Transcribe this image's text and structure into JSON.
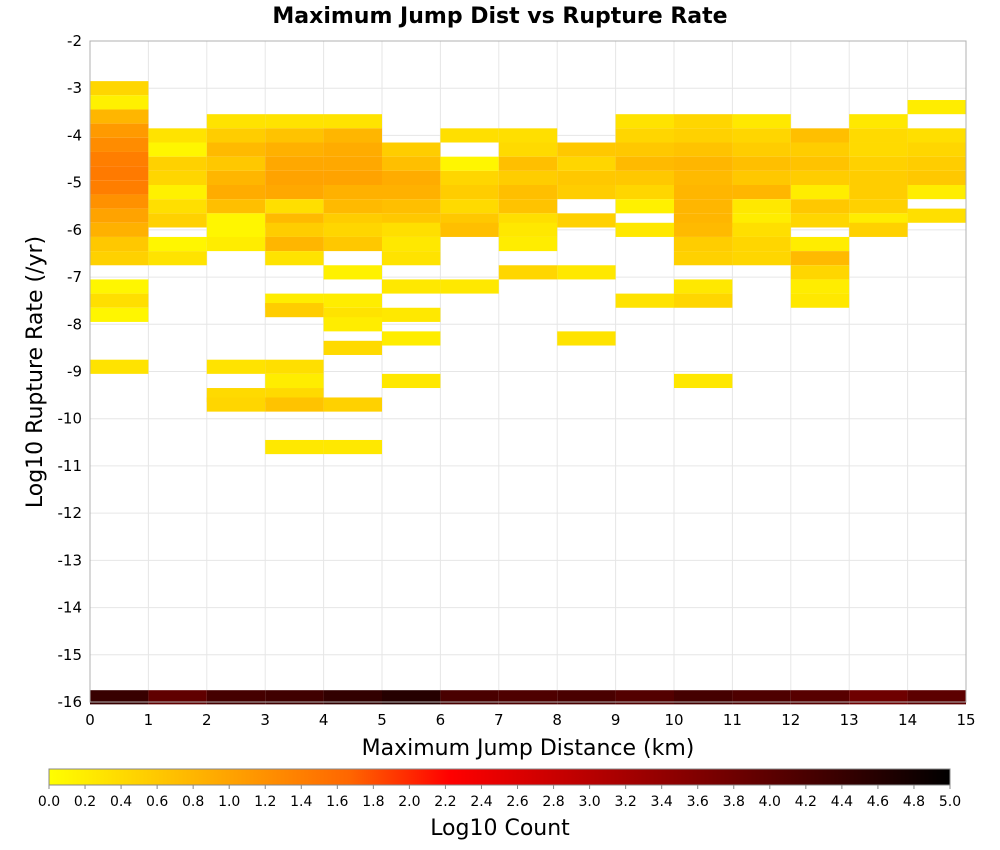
{
  "chart_data": {
    "type": "heatmap",
    "title": "Maximum Jump Dist vs Rupture Rate",
    "xlabel": "Maximum Jump Distance (km)",
    "ylabel": "Log10 Rupture Rate (/yr)",
    "xlim": [
      0,
      15
    ],
    "ylim": [
      -16,
      -2
    ],
    "x_ticks": [
      "0",
      "1",
      "2",
      "3",
      "4",
      "5",
      "6",
      "7",
      "8",
      "9",
      "10",
      "11",
      "12",
      "13",
      "14",
      "15"
    ],
    "y_ticks": [
      "-2",
      "-3",
      "-4",
      "-5",
      "-6",
      "-7",
      "-8",
      "-9",
      "-10",
      "-11",
      "-12",
      "-13",
      "-14",
      "-15",
      "-16"
    ],
    "bin_width_x": 1,
    "bin_height_y": 0.3,
    "colorbar": {
      "label": "Log10 Count",
      "range": [
        0,
        5
      ],
      "ticks": [
        "0.0",
        "0.2",
        "0.4",
        "0.6",
        "0.8",
        "1.0",
        "1.2",
        "1.4",
        "1.6",
        "1.8",
        "2.0",
        "2.2",
        "2.4",
        "2.6",
        "2.8",
        "3.0",
        "3.2",
        "3.4",
        "3.6",
        "3.8",
        "4.0",
        "4.2",
        "4.4",
        "4.6",
        "4.8",
        "5.0"
      ],
      "colors": [
        "#ffff00",
        "#ffcc00",
        "#ff9900",
        "#ff6600",
        "#ff0000",
        "#cc0000",
        "#990000",
        "#660000",
        "#330000",
        "#000000"
      ]
    },
    "cells": [
      {
        "x": 0.5,
        "y": -3.0,
        "v": 0.45
      },
      {
        "x": 0.5,
        "y": -3.3,
        "v": 0.15
      },
      {
        "x": 0.5,
        "y": -3.6,
        "v": 0.8
      },
      {
        "x": 0.5,
        "y": -3.9,
        "v": 1.1
      },
      {
        "x": 0.5,
        "y": -4.2,
        "v": 1.25
      },
      {
        "x": 0.5,
        "y": -4.5,
        "v": 1.4
      },
      {
        "x": 0.5,
        "y": -4.8,
        "v": 1.45
      },
      {
        "x": 0.5,
        "y": -5.1,
        "v": 1.4
      },
      {
        "x": 0.5,
        "y": -5.4,
        "v": 1.2
      },
      {
        "x": 0.5,
        "y": -5.7,
        "v": 1.0
      },
      {
        "x": 0.5,
        "y": -6.0,
        "v": 0.85
      },
      {
        "x": 0.5,
        "y": -6.3,
        "v": 0.6
      },
      {
        "x": 0.5,
        "y": -6.6,
        "v": 0.5
      },
      {
        "x": 0.5,
        "y": -7.2,
        "v": 0.1
      },
      {
        "x": 0.5,
        "y": -7.5,
        "v": 0.35
      },
      {
        "x": 0.5,
        "y": -7.8,
        "v": 0.1
      },
      {
        "x": 0.5,
        "y": -8.9,
        "v": 0.3
      },
      {
        "x": 1.5,
        "y": -4.0,
        "v": 0.3
      },
      {
        "x": 1.5,
        "y": -4.3,
        "v": 0.1
      },
      {
        "x": 1.5,
        "y": -4.6,
        "v": 0.5
      },
      {
        "x": 1.5,
        "y": -4.9,
        "v": 0.45
      },
      {
        "x": 1.5,
        "y": -5.2,
        "v": 0.15
      },
      {
        "x": 1.5,
        "y": -5.5,
        "v": 0.35
      },
      {
        "x": 1.5,
        "y": -5.8,
        "v": 0.5
      },
      {
        "x": 1.5,
        "y": -6.3,
        "v": 0.1
      },
      {
        "x": 1.5,
        "y": -6.6,
        "v": 0.3
      },
      {
        "x": 2.5,
        "y": -3.7,
        "v": 0.3
      },
      {
        "x": 2.5,
        "y": -4.0,
        "v": 0.55
      },
      {
        "x": 2.5,
        "y": -4.3,
        "v": 0.75
      },
      {
        "x": 2.5,
        "y": -4.6,
        "v": 0.6
      },
      {
        "x": 2.5,
        "y": -4.9,
        "v": 0.8
      },
      {
        "x": 2.5,
        "y": -5.2,
        "v": 0.9
      },
      {
        "x": 2.5,
        "y": -5.5,
        "v": 0.7
      },
      {
        "x": 2.5,
        "y": -5.8,
        "v": 0.1
      },
      {
        "x": 2.5,
        "y": -6.1,
        "v": 0.1
      },
      {
        "x": 2.5,
        "y": -6.3,
        "v": 0.2
      },
      {
        "x": 2.5,
        "y": -8.9,
        "v": 0.3
      },
      {
        "x": 2.5,
        "y": -9.5,
        "v": 0.4
      },
      {
        "x": 2.5,
        "y": -9.7,
        "v": 0.45
      },
      {
        "x": 3.5,
        "y": -3.7,
        "v": 0.3
      },
      {
        "x": 3.5,
        "y": -4.0,
        "v": 0.65
      },
      {
        "x": 3.5,
        "y": -4.3,
        "v": 0.85
      },
      {
        "x": 3.5,
        "y": -4.6,
        "v": 0.95
      },
      {
        "x": 3.5,
        "y": -4.9,
        "v": 1.0
      },
      {
        "x": 3.5,
        "y": -5.2,
        "v": 0.95
      },
      {
        "x": 3.5,
        "y": -5.5,
        "v": 0.35
      },
      {
        "x": 3.5,
        "y": -5.8,
        "v": 0.75
      },
      {
        "x": 3.5,
        "y": -6.0,
        "v": 0.55
      },
      {
        "x": 3.5,
        "y": -6.3,
        "v": 0.8
      },
      {
        "x": 3.5,
        "y": -6.6,
        "v": 0.3
      },
      {
        "x": 3.5,
        "y": -7.5,
        "v": 0.2
      },
      {
        "x": 3.5,
        "y": -7.7,
        "v": 0.55
      },
      {
        "x": 3.5,
        "y": -8.9,
        "v": 0.35
      },
      {
        "x": 3.5,
        "y": -9.2,
        "v": 0.2
      },
      {
        "x": 3.5,
        "y": -9.5,
        "v": 0.4
      },
      {
        "x": 3.5,
        "y": -9.7,
        "v": 0.65
      },
      {
        "x": 3.5,
        "y": -10.6,
        "v": 0.25
      },
      {
        "x": 4.5,
        "y": -3.7,
        "v": 0.3
      },
      {
        "x": 4.5,
        "y": -4.0,
        "v": 0.8
      },
      {
        "x": 4.5,
        "y": -4.3,
        "v": 0.9
      },
      {
        "x": 4.5,
        "y": -4.6,
        "v": 0.95
      },
      {
        "x": 4.5,
        "y": -4.9,
        "v": 1.0
      },
      {
        "x": 4.5,
        "y": -5.2,
        "v": 0.85
      },
      {
        "x": 4.5,
        "y": -5.5,
        "v": 0.75
      },
      {
        "x": 4.5,
        "y": -5.8,
        "v": 0.55
      },
      {
        "x": 4.5,
        "y": -6.0,
        "v": 0.45
      },
      {
        "x": 4.5,
        "y": -6.3,
        "v": 0.6
      },
      {
        "x": 4.5,
        "y": -6.9,
        "v": 0.15
      },
      {
        "x": 4.5,
        "y": -7.5,
        "v": 0.2
      },
      {
        "x": 4.5,
        "y": -7.8,
        "v": 0.3
      },
      {
        "x": 4.5,
        "y": -8.0,
        "v": 0.2
      },
      {
        "x": 4.5,
        "y": -8.5,
        "v": 0.4
      },
      {
        "x": 4.5,
        "y": -9.7,
        "v": 0.5
      },
      {
        "x": 4.5,
        "y": -10.6,
        "v": 0.25
      },
      {
        "x": 5.5,
        "y": -4.3,
        "v": 0.55
      },
      {
        "x": 5.5,
        "y": -4.6,
        "v": 0.7
      },
      {
        "x": 5.5,
        "y": -4.9,
        "v": 0.9
      },
      {
        "x": 5.5,
        "y": -5.2,
        "v": 0.85
      },
      {
        "x": 5.5,
        "y": -5.5,
        "v": 0.7
      },
      {
        "x": 5.5,
        "y": -5.8,
        "v": 0.6
      },
      {
        "x": 5.5,
        "y": -6.0,
        "v": 0.35
      },
      {
        "x": 5.5,
        "y": -6.3,
        "v": 0.25
      },
      {
        "x": 5.5,
        "y": -6.6,
        "v": 0.3
      },
      {
        "x": 5.5,
        "y": -7.2,
        "v": 0.25
      },
      {
        "x": 5.5,
        "y": -7.8,
        "v": 0.25
      },
      {
        "x": 5.5,
        "y": -8.3,
        "v": 0.2
      },
      {
        "x": 5.5,
        "y": -9.2,
        "v": 0.25
      },
      {
        "x": 6.5,
        "y": -4.0,
        "v": 0.35
      },
      {
        "x": 6.5,
        "y": -4.6,
        "v": 0.1
      },
      {
        "x": 6.5,
        "y": -4.9,
        "v": 0.45
      },
      {
        "x": 6.5,
        "y": -5.2,
        "v": 0.55
      },
      {
        "x": 6.5,
        "y": -5.5,
        "v": 0.4
      },
      {
        "x": 6.5,
        "y": -5.8,
        "v": 0.6
      },
      {
        "x": 6.5,
        "y": -6.0,
        "v": 0.7
      },
      {
        "x": 6.5,
        "y": -7.2,
        "v": 0.25
      },
      {
        "x": 7.5,
        "y": -4.0,
        "v": 0.35
      },
      {
        "x": 7.5,
        "y": -4.3,
        "v": 0.4
      },
      {
        "x": 7.5,
        "y": -4.6,
        "v": 0.7
      },
      {
        "x": 7.5,
        "y": -4.9,
        "v": 0.55
      },
      {
        "x": 7.5,
        "y": -5.2,
        "v": 0.7
      },
      {
        "x": 7.5,
        "y": -5.5,
        "v": 0.65
      },
      {
        "x": 7.5,
        "y": -5.8,
        "v": 0.35
      },
      {
        "x": 7.5,
        "y": -6.0,
        "v": 0.25
      },
      {
        "x": 7.5,
        "y": -6.3,
        "v": 0.2
      },
      {
        "x": 7.5,
        "y": -6.9,
        "v": 0.45
      },
      {
        "x": 8.5,
        "y": -4.3,
        "v": 0.6
      },
      {
        "x": 8.5,
        "y": -4.6,
        "v": 0.45
      },
      {
        "x": 8.5,
        "y": -4.9,
        "v": 0.6
      },
      {
        "x": 8.5,
        "y": -5.2,
        "v": 0.55
      },
      {
        "x": 8.5,
        "y": -5.8,
        "v": 0.5
      },
      {
        "x": 8.5,
        "y": -6.9,
        "v": 0.25
      },
      {
        "x": 8.5,
        "y": -8.3,
        "v": 0.3
      },
      {
        "x": 9.5,
        "y": -3.7,
        "v": 0.3
      },
      {
        "x": 9.5,
        "y": -4.0,
        "v": 0.45
      },
      {
        "x": 9.5,
        "y": -4.3,
        "v": 0.6
      },
      {
        "x": 9.5,
        "y": -4.6,
        "v": 0.75
      },
      {
        "x": 9.5,
        "y": -4.9,
        "v": 0.6
      },
      {
        "x": 9.5,
        "y": -5.2,
        "v": 0.45
      },
      {
        "x": 9.5,
        "y": -5.5,
        "v": 0.15
      },
      {
        "x": 9.5,
        "y": -6.0,
        "v": 0.25
      },
      {
        "x": 9.5,
        "y": -7.5,
        "v": 0.3
      },
      {
        "x": 10.5,
        "y": -3.7,
        "v": 0.45
      },
      {
        "x": 10.5,
        "y": -4.0,
        "v": 0.5
      },
      {
        "x": 10.5,
        "y": -4.3,
        "v": 0.65
      },
      {
        "x": 10.5,
        "y": -4.6,
        "v": 0.8
      },
      {
        "x": 10.5,
        "y": -4.9,
        "v": 0.75
      },
      {
        "x": 10.5,
        "y": -5.2,
        "v": 0.8
      },
      {
        "x": 10.5,
        "y": -5.5,
        "v": 0.8
      },
      {
        "x": 10.5,
        "y": -5.8,
        "v": 0.8
      },
      {
        "x": 10.5,
        "y": -6.0,
        "v": 0.75
      },
      {
        "x": 10.5,
        "y": -6.3,
        "v": 0.55
      },
      {
        "x": 10.5,
        "y": -6.6,
        "v": 0.5
      },
      {
        "x": 10.5,
        "y": -7.2,
        "v": 0.25
      },
      {
        "x": 10.5,
        "y": -7.5,
        "v": 0.45
      },
      {
        "x": 10.5,
        "y": -9.2,
        "v": 0.25
      },
      {
        "x": 11.5,
        "y": -3.7,
        "v": 0.25
      },
      {
        "x": 11.5,
        "y": -4.0,
        "v": 0.45
      },
      {
        "x": 11.5,
        "y": -4.3,
        "v": 0.55
      },
      {
        "x": 11.5,
        "y": -4.6,
        "v": 0.7
      },
      {
        "x": 11.5,
        "y": -4.9,
        "v": 0.6
      },
      {
        "x": 11.5,
        "y": -5.2,
        "v": 0.8
      },
      {
        "x": 11.5,
        "y": -5.5,
        "v": 0.25
      },
      {
        "x": 11.5,
        "y": -5.8,
        "v": 0.2
      },
      {
        "x": 11.5,
        "y": -6.0,
        "v": 0.35
      },
      {
        "x": 11.5,
        "y": -6.3,
        "v": 0.45
      },
      {
        "x": 11.5,
        "y": -6.6,
        "v": 0.45
      },
      {
        "x": 12.5,
        "y": -4.0,
        "v": 0.7
      },
      {
        "x": 12.5,
        "y": -4.3,
        "v": 0.55
      },
      {
        "x": 12.5,
        "y": -4.6,
        "v": 0.65
      },
      {
        "x": 12.5,
        "y": -4.9,
        "v": 0.55
      },
      {
        "x": 12.5,
        "y": -5.2,
        "v": 0.2
      },
      {
        "x": 12.5,
        "y": -5.5,
        "v": 0.6
      },
      {
        "x": 12.5,
        "y": -5.8,
        "v": 0.45
      },
      {
        "x": 12.5,
        "y": -6.3,
        "v": 0.2
      },
      {
        "x": 12.5,
        "y": -6.6,
        "v": 0.75
      },
      {
        "x": 12.5,
        "y": -6.9,
        "v": 0.45
      },
      {
        "x": 12.5,
        "y": -7.2,
        "v": 0.2
      },
      {
        "x": 12.5,
        "y": -7.5,
        "v": 0.25
      },
      {
        "x": 13.5,
        "y": -3.7,
        "v": 0.25
      },
      {
        "x": 13.5,
        "y": -4.0,
        "v": 0.4
      },
      {
        "x": 13.5,
        "y": -4.3,
        "v": 0.4
      },
      {
        "x": 13.5,
        "y": -4.6,
        "v": 0.5
      },
      {
        "x": 13.5,
        "y": -4.9,
        "v": 0.55
      },
      {
        "x": 13.5,
        "y": -5.2,
        "v": 0.55
      },
      {
        "x": 13.5,
        "y": -5.5,
        "v": 0.5
      },
      {
        "x": 13.5,
        "y": -5.8,
        "v": 0.2
      },
      {
        "x": 13.5,
        "y": -6.0,
        "v": 0.5
      },
      {
        "x": 14.5,
        "y": -3.4,
        "v": 0.2
      },
      {
        "x": 14.5,
        "y": -4.0,
        "v": 0.35
      },
      {
        "x": 14.5,
        "y": -4.3,
        "v": 0.45
      },
      {
        "x": 14.5,
        "y": -4.6,
        "v": 0.55
      },
      {
        "x": 14.5,
        "y": -4.9,
        "v": 0.6
      },
      {
        "x": 14.5,
        "y": -5.2,
        "v": 0.2
      },
      {
        "x": 14.5,
        "y": -5.7,
        "v": 0.35
      },
      {
        "x": 0.5,
        "y": -15.9,
        "v": 4.4
      },
      {
        "x": 1.5,
        "y": -15.9,
        "v": 3.95
      },
      {
        "x": 2.5,
        "y": -15.9,
        "v": 4.25
      },
      {
        "x": 3.5,
        "y": -15.9,
        "v": 4.3
      },
      {
        "x": 4.5,
        "y": -15.9,
        "v": 4.45
      },
      {
        "x": 5.5,
        "y": -15.9,
        "v": 4.6
      },
      {
        "x": 6.5,
        "y": -15.9,
        "v": 4.2
      },
      {
        "x": 7.5,
        "y": -15.9,
        "v": 4.15
      },
      {
        "x": 8.5,
        "y": -15.9,
        "v": 4.2
      },
      {
        "x": 9.5,
        "y": -15.9,
        "v": 4.1
      },
      {
        "x": 10.5,
        "y": -15.9,
        "v": 4.25
      },
      {
        "x": 11.5,
        "y": -15.9,
        "v": 4.15
      },
      {
        "x": 12.5,
        "y": -15.9,
        "v": 4.05
      },
      {
        "x": 13.5,
        "y": -15.9,
        "v": 3.8
      },
      {
        "x": 14.5,
        "y": -15.9,
        "v": 4.0
      }
    ]
  }
}
